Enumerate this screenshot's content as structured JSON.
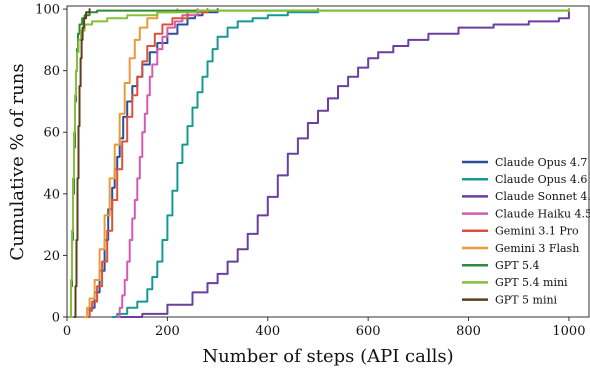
{
  "chart_data": {
    "type": "line",
    "xlabel": "Number of steps (API calls)",
    "ylabel": "Cumulative % of runs",
    "xlim": [
      0,
      1040
    ],
    "ylim": [
      0,
      101
    ],
    "xticks": [
      0,
      200,
      400,
      600,
      800,
      1000
    ],
    "yticks": [
      0,
      20,
      40,
      60,
      80,
      100
    ],
    "grid": false,
    "legend": "right",
    "series": [
      {
        "name": "Claude Opus 4.7",
        "color": "#2a4f9a",
        "points": [
          [
            35,
            0
          ],
          [
            45,
            3
          ],
          [
            55,
            8
          ],
          [
            65,
            15
          ],
          [
            75,
            25
          ],
          [
            82,
            35
          ],
          [
            90,
            42
          ],
          [
            95,
            48
          ],
          [
            100,
            52
          ],
          [
            105,
            58
          ],
          [
            112,
            65
          ],
          [
            120,
            70
          ],
          [
            130,
            75
          ],
          [
            140,
            78
          ],
          [
            150,
            82
          ],
          [
            165,
            86
          ],
          [
            180,
            89
          ],
          [
            200,
            92
          ],
          [
            220,
            95
          ],
          [
            240,
            97
          ],
          [
            255,
            98
          ],
          [
            270,
            99
          ],
          [
            300,
            100
          ]
        ]
      },
      {
        "name": "Claude Opus 4.6",
        "color": "#149a92",
        "points": [
          [
            90,
            0
          ],
          [
            100,
            1
          ],
          [
            120,
            3
          ],
          [
            140,
            5
          ],
          [
            160,
            9
          ],
          [
            170,
            13
          ],
          [
            180,
            18
          ],
          [
            190,
            25
          ],
          [
            200,
            33
          ],
          [
            210,
            41
          ],
          [
            220,
            50
          ],
          [
            230,
            56
          ],
          [
            240,
            62
          ],
          [
            250,
            68
          ],
          [
            260,
            73
          ],
          [
            270,
            78
          ],
          [
            280,
            83
          ],
          [
            290,
            87
          ],
          [
            300,
            91
          ],
          [
            320,
            94
          ],
          [
            340,
            96
          ],
          [
            370,
            97
          ],
          [
            400,
            98
          ],
          [
            440,
            99
          ],
          [
            500,
            100
          ]
        ]
      },
      {
        "name": "Claude Sonnet 4.6",
        "color": "#6a3fa0",
        "points": [
          [
            100,
            0
          ],
          [
            150,
            1
          ],
          [
            200,
            4
          ],
          [
            250,
            8
          ],
          [
            280,
            11
          ],
          [
            300,
            14
          ],
          [
            320,
            18
          ],
          [
            340,
            22
          ],
          [
            360,
            27
          ],
          [
            380,
            33
          ],
          [
            400,
            39
          ],
          [
            420,
            46
          ],
          [
            440,
            53
          ],
          [
            460,
            58
          ],
          [
            480,
            63
          ],
          [
            500,
            67
          ],
          [
            520,
            71
          ],
          [
            540,
            75
          ],
          [
            560,
            78
          ],
          [
            580,
            81
          ],
          [
            600,
            84
          ],
          [
            620,
            86
          ],
          [
            650,
            88
          ],
          [
            680,
            90
          ],
          [
            720,
            92
          ],
          [
            780,
            94
          ],
          [
            850,
            95
          ],
          [
            920,
            96
          ],
          [
            980,
            97
          ],
          [
            1000,
            99
          ]
        ]
      },
      {
        "name": "Claude Haiku 4.5",
        "color": "#d45bb2",
        "points": [
          [
            100,
            0
          ],
          [
            105,
            3
          ],
          [
            110,
            7
          ],
          [
            115,
            12
          ],
          [
            120,
            18
          ],
          [
            125,
            25
          ],
          [
            130,
            32
          ],
          [
            135,
            38
          ],
          [
            140,
            45
          ],
          [
            145,
            52
          ],
          [
            150,
            60
          ],
          [
            155,
            66
          ],
          [
            160,
            72
          ],
          [
            165,
            78
          ],
          [
            170,
            82
          ],
          [
            180,
            87
          ],
          [
            190,
            91
          ],
          [
            200,
            94
          ],
          [
            215,
            96
          ],
          [
            230,
            98
          ],
          [
            260,
            100
          ]
        ]
      },
      {
        "name": "Gemini 3.1 Pro",
        "color": "#d9533c",
        "points": [
          [
            40,
            0
          ],
          [
            45,
            2
          ],
          [
            50,
            5
          ],
          [
            60,
            10
          ],
          [
            70,
            18
          ],
          [
            80,
            28
          ],
          [
            90,
            38
          ],
          [
            100,
            48
          ],
          [
            110,
            57
          ],
          [
            120,
            65
          ],
          [
            130,
            72
          ],
          [
            140,
            78
          ],
          [
            150,
            83
          ],
          [
            160,
            88
          ],
          [
            175,
            92
          ],
          [
            190,
            95
          ],
          [
            210,
            97
          ],
          [
            240,
            99
          ],
          [
            280,
            100
          ]
        ]
      },
      {
        "name": "Gemini 3 Flash",
        "color": "#eb9a3a",
        "points": [
          [
            35,
            0
          ],
          [
            40,
            3
          ],
          [
            45,
            6
          ],
          [
            55,
            12
          ],
          [
            65,
            22
          ],
          [
            75,
            33
          ],
          [
            85,
            45
          ],
          [
            95,
            56
          ],
          [
            105,
            66
          ],
          [
            115,
            76
          ],
          [
            125,
            84
          ],
          [
            135,
            90
          ],
          [
            145,
            94
          ],
          [
            160,
            97
          ],
          [
            180,
            99
          ],
          [
            220,
            100
          ]
        ]
      },
      {
        "name": "GPT 5.4",
        "color": "#2e8b3a",
        "points": [
          [
            5,
            0
          ],
          [
            8,
            10
          ],
          [
            10,
            25
          ],
          [
            12,
            40
          ],
          [
            14,
            55
          ],
          [
            16,
            70
          ],
          [
            18,
            80
          ],
          [
            20,
            87
          ],
          [
            22,
            92
          ],
          [
            25,
            95
          ],
          [
            30,
            97
          ],
          [
            35,
            98
          ],
          [
            45,
            99
          ],
          [
            60,
            99.5
          ],
          [
            1000,
            100
          ]
        ]
      },
      {
        "name": "GPT 5.4 mini",
        "color": "#86bf3a",
        "points": [
          [
            5,
            0
          ],
          [
            8,
            12
          ],
          [
            10,
            28
          ],
          [
            12,
            45
          ],
          [
            14,
            60
          ],
          [
            16,
            72
          ],
          [
            18,
            80
          ],
          [
            20,
            86
          ],
          [
            23,
            90
          ],
          [
            28,
            93
          ],
          [
            35,
            95
          ],
          [
            50,
            96
          ],
          [
            80,
            97
          ],
          [
            120,
            98
          ],
          [
            180,
            99
          ],
          [
            260,
            99.5
          ],
          [
            1000,
            100
          ]
        ]
      },
      {
        "name": "GPT 5 mini",
        "color": "#5c3d1c",
        "points": [
          [
            15,
            0
          ],
          [
            17,
            10
          ],
          [
            19,
            25
          ],
          [
            21,
            45
          ],
          [
            23,
            62
          ],
          [
            25,
            75
          ],
          [
            27,
            84
          ],
          [
            29,
            90
          ],
          [
            31,
            94
          ],
          [
            34,
            97
          ],
          [
            38,
            99
          ],
          [
            45,
            100
          ]
        ]
      }
    ]
  }
}
